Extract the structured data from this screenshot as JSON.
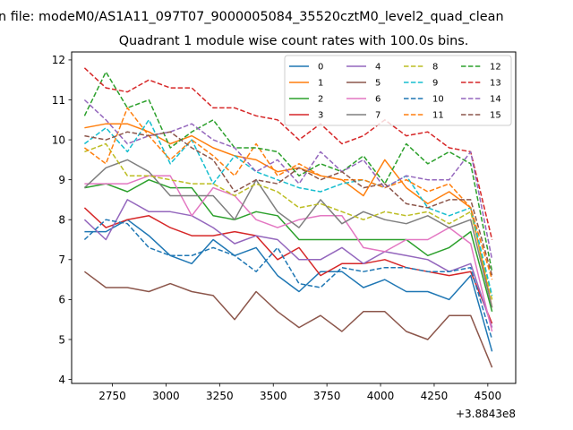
{
  "chart_data": {
    "type": "line",
    "suptitle": "n file: modeM0/AS1A11_097T07_9000005084_35520cztM0_level2_quad_clean",
    "title": "Quadrant 1 module wise count rates with 100.0s bins.",
    "xlabel": "",
    "ylabel": "",
    "x_offset_label": "+3.8843e8",
    "xlim": [
      2560,
      4630
    ],
    "ylim": [
      3.9,
      12.2
    ],
    "xticks": [
      2750,
      3000,
      3250,
      3500,
      3750,
      4000,
      4250,
      4500
    ],
    "xtick_labels": [
      "2750",
      "3000",
      "3250",
      "3500",
      "3750",
      "4000",
      "4250",
      "4500"
    ],
    "yticks": [
      4,
      5,
      6,
      7,
      8,
      9,
      10,
      11,
      12
    ],
    "ytick_labels": [
      "4",
      "5",
      "6",
      "7",
      "8",
      "9",
      "10",
      "11",
      "12"
    ],
    "grid": false,
    "legend_location": "top-right",
    "legend_columns": 4,
    "x": [
      2620,
      2720,
      2820,
      2920,
      3020,
      3120,
      3220,
      3320,
      3420,
      3520,
      3620,
      3720,
      3820,
      3920,
      4020,
      4120,
      4220,
      4320,
      4420,
      4520
    ],
    "series": [
      {
        "name": "0",
        "color": "#1f77b4",
        "dash": "solid",
        "values": [
          7.7,
          7.7,
          8.0,
          7.6,
          7.1,
          6.9,
          7.5,
          7.1,
          7.3,
          6.6,
          6.2,
          6.7,
          6.7,
          6.3,
          6.5,
          6.2,
          6.2,
          6.0,
          6.6,
          4.7
        ]
      },
      {
        "name": "1",
        "color": "#ff7f0e",
        "dash": "solid",
        "values": [
          10.3,
          10.4,
          10.4,
          10.2,
          9.9,
          10.1,
          9.8,
          9.6,
          9.5,
          9.2,
          9.3,
          9.1,
          9.0,
          8.6,
          9.5,
          8.8,
          8.4,
          8.7,
          8.3,
          5.8
        ]
      },
      {
        "name": "2",
        "color": "#2ca02c",
        "dash": "solid",
        "values": [
          8.8,
          8.9,
          8.7,
          9.0,
          8.8,
          8.8,
          8.1,
          8.0,
          8.2,
          8.1,
          7.5,
          7.5,
          7.5,
          7.5,
          7.5,
          7.5,
          7.1,
          7.3,
          7.7,
          5.7
        ]
      },
      {
        "name": "3",
        "color": "#d62728",
        "dash": "solid",
        "values": [
          8.3,
          7.8,
          8.0,
          8.1,
          7.8,
          7.6,
          7.6,
          7.7,
          7.6,
          7.0,
          7.3,
          6.6,
          6.9,
          6.9,
          7.0,
          6.8,
          6.7,
          6.6,
          6.7,
          5.4
        ]
      },
      {
        "name": "4",
        "color": "#9467bd",
        "dash": "solid",
        "values": [
          8.0,
          7.5,
          8.5,
          8.2,
          8.2,
          8.1,
          7.8,
          7.4,
          7.6,
          7.5,
          7.0,
          7.0,
          7.3,
          6.9,
          7.2,
          7.1,
          7.0,
          6.7,
          6.9,
          5.3
        ]
      },
      {
        "name": "5",
        "color": "#8c564b",
        "dash": "solid",
        "values": [
          6.7,
          6.3,
          6.3,
          6.2,
          6.4,
          6.2,
          6.1,
          5.5,
          6.2,
          5.7,
          5.3,
          5.6,
          5.2,
          5.7,
          5.7,
          5.2,
          5.0,
          5.6,
          5.6,
          4.3
        ]
      },
      {
        "name": "6",
        "color": "#e377c2",
        "dash": "solid",
        "values": [
          8.9,
          8.9,
          8.9,
          9.1,
          9.1,
          8.1,
          8.8,
          8.6,
          8.0,
          7.8,
          8.0,
          8.1,
          8.1,
          7.3,
          7.2,
          7.5,
          7.5,
          7.8,
          7.4,
          5.2
        ]
      },
      {
        "name": "7",
        "color": "#7f7f7f",
        "dash": "solid",
        "values": [
          8.8,
          9.3,
          9.5,
          9.2,
          8.6,
          8.6,
          8.6,
          8.0,
          9.0,
          8.2,
          7.8,
          8.5,
          7.9,
          8.2,
          8.0,
          7.9,
          8.1,
          7.8,
          8.0,
          5.8
        ]
      },
      {
        "name": "8",
        "color": "#bcbd22",
        "dash": "dashed",
        "values": [
          9.7,
          9.9,
          9.1,
          9.1,
          9.0,
          8.9,
          8.9,
          8.6,
          8.9,
          8.7,
          8.3,
          8.4,
          8.2,
          8.0,
          8.2,
          8.1,
          8.2,
          7.9,
          8.2,
          6.0
        ]
      },
      {
        "name": "9",
        "color": "#17becf",
        "dash": "dashed",
        "values": [
          9.9,
          10.3,
          9.7,
          10.5,
          9.4,
          10.0,
          8.9,
          9.6,
          9.2,
          9.0,
          8.8,
          8.7,
          8.9,
          9.0,
          8.8,
          9.1,
          8.3,
          8.1,
          8.3,
          6.1
        ]
      },
      {
        "name": "10",
        "color": "#1f77b4",
        "dash": "dashed",
        "values": [
          7.5,
          8.0,
          7.9,
          7.3,
          7.1,
          7.1,
          7.3,
          7.1,
          6.7,
          7.3,
          6.4,
          6.3,
          6.8,
          6.7,
          6.8,
          6.8,
          6.7,
          6.7,
          6.8,
          5.0
        ]
      },
      {
        "name": "11",
        "color": "#ff7f0e",
        "dash": "dashed",
        "values": [
          9.8,
          9.4,
          10.8,
          10.1,
          9.5,
          10.0,
          9.6,
          9.1,
          9.9,
          9.1,
          9.4,
          9.1,
          9.0,
          9.0,
          8.8,
          9.0,
          8.7,
          8.9,
          8.3,
          6.5
        ]
      },
      {
        "name": "12",
        "color": "#2ca02c",
        "dash": "dashed",
        "values": [
          10.6,
          11.7,
          10.8,
          11.0,
          9.8,
          10.2,
          10.5,
          9.8,
          9.8,
          9.7,
          9.1,
          9.4,
          9.2,
          9.6,
          8.9,
          9.9,
          9.4,
          9.7,
          9.4,
          6.7
        ]
      },
      {
        "name": "13",
        "color": "#d62728",
        "dash": "dashed",
        "values": [
          11.8,
          11.3,
          11.2,
          11.5,
          11.3,
          11.3,
          10.8,
          10.8,
          10.6,
          10.5,
          10.0,
          10.4,
          9.9,
          10.1,
          10.5,
          10.1,
          10.2,
          9.8,
          9.7,
          7.5
        ]
      },
      {
        "name": "14",
        "color": "#9467bd",
        "dash": "dashed",
        "values": [
          11.0,
          10.5,
          9.9,
          10.1,
          10.2,
          10.4,
          10.0,
          9.8,
          9.2,
          9.5,
          8.9,
          9.7,
          9.2,
          9.5,
          8.8,
          9.1,
          9.0,
          9.0,
          9.7,
          7.0
        ]
      },
      {
        "name": "15",
        "color": "#8c564b",
        "dash": "dashed",
        "values": [
          10.1,
          10.0,
          10.2,
          10.1,
          10.2,
          9.8,
          9.5,
          8.7,
          9.0,
          8.9,
          9.3,
          9.0,
          9.2,
          8.8,
          8.9,
          8.4,
          8.3,
          8.5,
          8.5,
          6.6
        ]
      }
    ]
  }
}
